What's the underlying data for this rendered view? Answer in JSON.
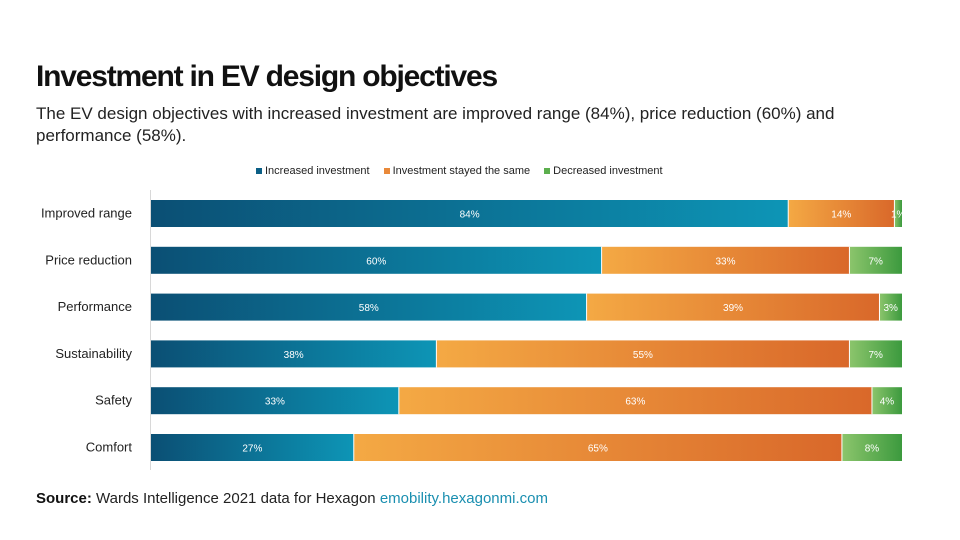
{
  "header": {
    "title": "Investment in EV design objectives",
    "subtitle": "The EV design objectives with increased investment are improved range (84%), price reduction (60%) and performance (58%)."
  },
  "footer": {
    "source_label": "Source:",
    "source_text": "Wards Intelligence 2021 data for Hexagon",
    "link_text": "emobility.hexagonmi.com"
  },
  "colors": {
    "increased_start": "#0b4f74",
    "increased_end": "#0d95b6",
    "same_start": "#f4a944",
    "same_end": "#d9682a",
    "decreased_start": "#8cc56c",
    "decreased_end": "#3c9a3e",
    "link": "#1a8fb0"
  },
  "chart_data": {
    "type": "bar",
    "orientation": "horizontal",
    "stacked": true,
    "categories": [
      "Improved range",
      "Price reduction",
      "Performance",
      "Sustainability",
      "Safety",
      "Comfort"
    ],
    "series": [
      {
        "name": "Increased investment",
        "values": [
          84,
          60,
          58,
          38,
          33,
          27
        ],
        "labels": [
          "84%",
          "60%",
          "58%",
          "38%",
          "33%",
          "27%"
        ]
      },
      {
        "name": "Investment stayed the same",
        "values": [
          14,
          33,
          39,
          55,
          63,
          65
        ],
        "labels": [
          "14%",
          "33%",
          "39%",
          "55%",
          "63%",
          "65%"
        ]
      },
      {
        "name": "Decreased investment",
        "values": [
          1,
          7,
          3,
          7,
          4,
          8
        ],
        "labels": [
          "1%",
          "7%",
          "3%",
          "7%",
          "4%",
          "8%"
        ]
      }
    ],
    "legend_position": "top",
    "grid": false
  }
}
